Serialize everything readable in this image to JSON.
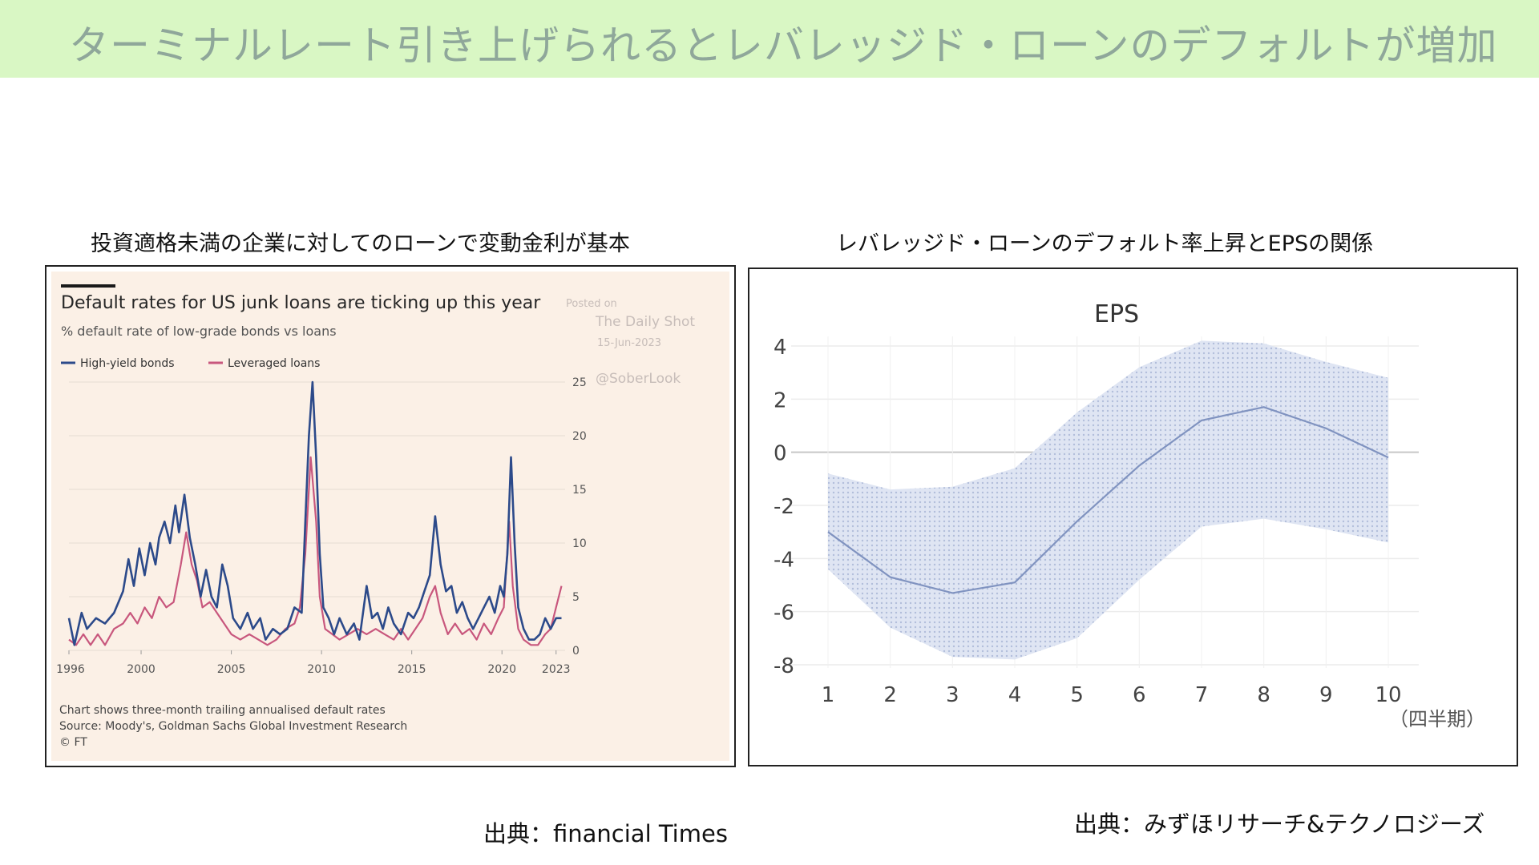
{
  "slide": {
    "title": "ターミナルレート引き上げられるとレバレッジド・ローンのデフォルトが増加",
    "left_caption": "投資適格未満の企業に対してのローンで変動金利が基本",
    "right_caption": "レバレッジド・ローンのデフォルト率上昇とEPSの関係",
    "left_source": "出典：financial Times",
    "right_source": "出典：みずほリサーチ&テクノロジーズ",
    "colors": {
      "banner": "#d9f7c4",
      "hy": "#2c4a8a",
      "lev": "#c8577d",
      "eps_band": "#c9d4ea",
      "eps_line": "#8093c0"
    }
  },
  "chart_data": [
    {
      "type": "line",
      "title": "Default rates for US junk loans are ticking up this year",
      "subtitle": "% default rate of low-grade bonds vs loans",
      "watermark": {
        "posted": "Posted on",
        "name": "The Daily Shot",
        "date": "15-Jun-2023",
        "handle": "@SoberLook"
      },
      "x_ticks": [
        "1996",
        "2000",
        "2005",
        "2010",
        "2015",
        "2020",
        "2023"
      ],
      "x_tick_values": [
        1996,
        2000,
        2005,
        2010,
        2015,
        2020,
        2023
      ],
      "y_ticks": [
        "0",
        "5",
        "10",
        "15",
        "20",
        "25"
      ],
      "y_tick_values": [
        0,
        5,
        10,
        15,
        20,
        25
      ],
      "xlim": [
        1996,
        2023.5
      ],
      "ylim": [
        0,
        25
      ],
      "y_axis_side": "right",
      "legend_position": "top-left",
      "footnotes": [
        "Chart shows three-month trailing annualised default rates",
        "Source: Moody's, Goldman Sachs Global Investment Research",
        "© FT"
      ],
      "series": [
        {
          "name": "High-yield bonds",
          "points": [
            [
              1996.0,
              3.0
            ],
            [
              1996.3,
              0.5
            ],
            [
              1996.7,
              3.5
            ],
            [
              1997.0,
              2.0
            ],
            [
              1997.5,
              3.0
            ],
            [
              1998.0,
              2.5
            ],
            [
              1998.5,
              3.5
            ],
            [
              1999.0,
              5.5
            ],
            [
              1999.3,
              8.5
            ],
            [
              1999.6,
              6.0
            ],
            [
              1999.9,
              9.5
            ],
            [
              2000.2,
              7.0
            ],
            [
              2000.5,
              10.0
            ],
            [
              2000.8,
              8.0
            ],
            [
              2001.0,
              10.5
            ],
            [
              2001.3,
              12.0
            ],
            [
              2001.6,
              10.0
            ],
            [
              2001.9,
              13.5
            ],
            [
              2002.1,
              11.0
            ],
            [
              2002.4,
              14.5
            ],
            [
              2002.7,
              10.5
            ],
            [
              2003.0,
              8.0
            ],
            [
              2003.3,
              5.0
            ],
            [
              2003.6,
              7.5
            ],
            [
              2003.9,
              5.0
            ],
            [
              2004.2,
              4.0
            ],
            [
              2004.5,
              8.0
            ],
            [
              2004.8,
              6.0
            ],
            [
              2005.1,
              3.0
            ],
            [
              2005.5,
              2.0
            ],
            [
              2005.9,
              3.5
            ],
            [
              2006.2,
              2.0
            ],
            [
              2006.6,
              3.0
            ],
            [
              2006.9,
              1.0
            ],
            [
              2007.3,
              2.0
            ],
            [
              2007.7,
              1.5
            ],
            [
              2008.1,
              2.0
            ],
            [
              2008.5,
              4.0
            ],
            [
              2008.9,
              3.5
            ],
            [
              2009.1,
              12.0
            ],
            [
              2009.3,
              20.0
            ],
            [
              2009.5,
              25.0
            ],
            [
              2009.7,
              18.0
            ],
            [
              2009.9,
              9.0
            ],
            [
              2010.1,
              4.0
            ],
            [
              2010.4,
              3.0
            ],
            [
              2010.7,
              1.5
            ],
            [
              2011.0,
              3.0
            ],
            [
              2011.4,
              1.5
            ],
            [
              2011.8,
              2.5
            ],
            [
              2012.1,
              1.0
            ],
            [
              2012.5,
              6.0
            ],
            [
              2012.8,
              3.0
            ],
            [
              2013.1,
              3.5
            ],
            [
              2013.4,
              2.0
            ],
            [
              2013.7,
              4.0
            ],
            [
              2014.0,
              2.5
            ],
            [
              2014.4,
              1.5
            ],
            [
              2014.8,
              3.5
            ],
            [
              2015.1,
              3.0
            ],
            [
              2015.4,
              4.0
            ],
            [
              2015.7,
              5.5
            ],
            [
              2016.0,
              7.0
            ],
            [
              2016.3,
              12.5
            ],
            [
              2016.6,
              8.0
            ],
            [
              2016.9,
              5.5
            ],
            [
              2017.2,
              6.0
            ],
            [
              2017.5,
              3.5
            ],
            [
              2017.8,
              4.5
            ],
            [
              2018.1,
              3.0
            ],
            [
              2018.4,
              2.0
            ],
            [
              2018.7,
              3.0
            ],
            [
              2019.0,
              4.0
            ],
            [
              2019.3,
              5.0
            ],
            [
              2019.6,
              3.5
            ],
            [
              2019.9,
              6.0
            ],
            [
              2020.1,
              5.0
            ],
            [
              2020.3,
              9.0
            ],
            [
              2020.5,
              18.0
            ],
            [
              2020.7,
              10.0
            ],
            [
              2020.9,
              4.0
            ],
            [
              2021.2,
              2.0
            ],
            [
              2021.5,
              1.0
            ],
            [
              2021.8,
              1.0
            ],
            [
              2022.1,
              1.5
            ],
            [
              2022.4,
              3.0
            ],
            [
              2022.7,
              2.0
            ],
            [
              2023.0,
              3.0
            ],
            [
              2023.3,
              3.0
            ]
          ]
        },
        {
          "name": "Leveraged loans",
          "points": [
            [
              1996.0,
              1.0
            ],
            [
              1996.4,
              0.5
            ],
            [
              1996.8,
              1.5
            ],
            [
              1997.2,
              0.5
            ],
            [
              1997.6,
              1.5
            ],
            [
              1998.0,
              0.5
            ],
            [
              1998.5,
              2.0
            ],
            [
              1999.0,
              2.5
            ],
            [
              1999.4,
              3.5
            ],
            [
              1999.8,
              2.5
            ],
            [
              2000.2,
              4.0
            ],
            [
              2000.6,
              3.0
            ],
            [
              2001.0,
              5.0
            ],
            [
              2001.4,
              4.0
            ],
            [
              2001.8,
              4.5
            ],
            [
              2002.2,
              8.0
            ],
            [
              2002.5,
              11.0
            ],
            [
              2002.8,
              8.0
            ],
            [
              2003.1,
              6.5
            ],
            [
              2003.4,
              4.0
            ],
            [
              2003.8,
              4.5
            ],
            [
              2004.2,
              3.5
            ],
            [
              2004.6,
              2.5
            ],
            [
              2005.0,
              1.5
            ],
            [
              2005.5,
              1.0
            ],
            [
              2006.0,
              1.5
            ],
            [
              2006.5,
              1.0
            ],
            [
              2007.0,
              0.5
            ],
            [
              2007.5,
              1.0
            ],
            [
              2008.0,
              2.0
            ],
            [
              2008.5,
              2.5
            ],
            [
              2008.8,
              4.0
            ],
            [
              2009.1,
              9.0
            ],
            [
              2009.4,
              18.0
            ],
            [
              2009.7,
              12.0
            ],
            [
              2009.9,
              5.0
            ],
            [
              2010.2,
              2.0
            ],
            [
              2010.6,
              1.5
            ],
            [
              2011.0,
              1.0
            ],
            [
              2011.5,
              1.5
            ],
            [
              2012.0,
              2.0
            ],
            [
              2012.5,
              1.5
            ],
            [
              2013.0,
              2.0
            ],
            [
              2013.5,
              1.5
            ],
            [
              2014.0,
              1.0
            ],
            [
              2014.4,
              2.0
            ],
            [
              2014.8,
              1.0
            ],
            [
              2015.2,
              2.0
            ],
            [
              2015.6,
              3.0
            ],
            [
              2016.0,
              5.0
            ],
            [
              2016.3,
              6.0
            ],
            [
              2016.6,
              3.5
            ],
            [
              2017.0,
              1.5
            ],
            [
              2017.4,
              2.5
            ],
            [
              2017.8,
              1.5
            ],
            [
              2018.2,
              2.0
            ],
            [
              2018.6,
              1.0
            ],
            [
              2019.0,
              2.5
            ],
            [
              2019.4,
              1.5
            ],
            [
              2019.8,
              3.0
            ],
            [
              2020.1,
              4.0
            ],
            [
              2020.4,
              12.0
            ],
            [
              2020.6,
              6.0
            ],
            [
              2020.9,
              2.0
            ],
            [
              2021.2,
              1.0
            ],
            [
              2021.6,
              0.5
            ],
            [
              2022.0,
              0.5
            ],
            [
              2022.4,
              1.5
            ],
            [
              2022.7,
              2.0
            ],
            [
              2023.0,
              4.0
            ],
            [
              2023.3,
              6.0
            ]
          ]
        }
      ]
    },
    {
      "type": "area",
      "title": "EPS",
      "x_ticks": [
        "1",
        "2",
        "3",
        "4",
        "5",
        "6",
        "7",
        "8",
        "9",
        "10"
      ],
      "x_values": [
        1,
        2,
        3,
        4,
        5,
        6,
        7,
        8,
        9,
        10
      ],
      "y_ticks": [
        "4",
        "2",
        "0",
        "-2",
        "-4",
        "-6",
        "-8"
      ],
      "y_tick_values": [
        4,
        2,
        0,
        -2,
        -4,
        -6,
        -8
      ],
      "xlim": [
        1,
        10
      ],
      "ylim": [
        -8,
        4
      ],
      "x_unit": "（四半期）",
      "grid": true,
      "series": [
        {
          "role": "line",
          "values": [
            -3.0,
            -4.7,
            -5.3,
            -4.9,
            -2.6,
            -0.5,
            1.2,
            1.7,
            0.9,
            -0.2
          ]
        },
        {
          "role": "band-upper",
          "values": [
            -0.8,
            -1.4,
            -1.3,
            -0.6,
            1.5,
            3.2,
            4.2,
            4.1,
            3.4,
            2.8
          ]
        },
        {
          "role": "band-lower",
          "values": [
            -4.4,
            -6.6,
            -7.7,
            -7.8,
            -7.0,
            -4.8,
            -2.8,
            -2.5,
            -2.9,
            -3.4
          ]
        }
      ]
    }
  ]
}
